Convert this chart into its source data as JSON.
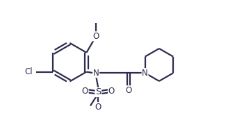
{
  "bg_color": "#ffffff",
  "line_color": "#2d2d4e",
  "line_width": 1.6,
  "font_size": 8.5,
  "figsize": [
    3.28,
    1.99
  ],
  "dpi": 100,
  "xlim": [
    0,
    10
  ],
  "ylim": [
    0,
    6.1
  ]
}
